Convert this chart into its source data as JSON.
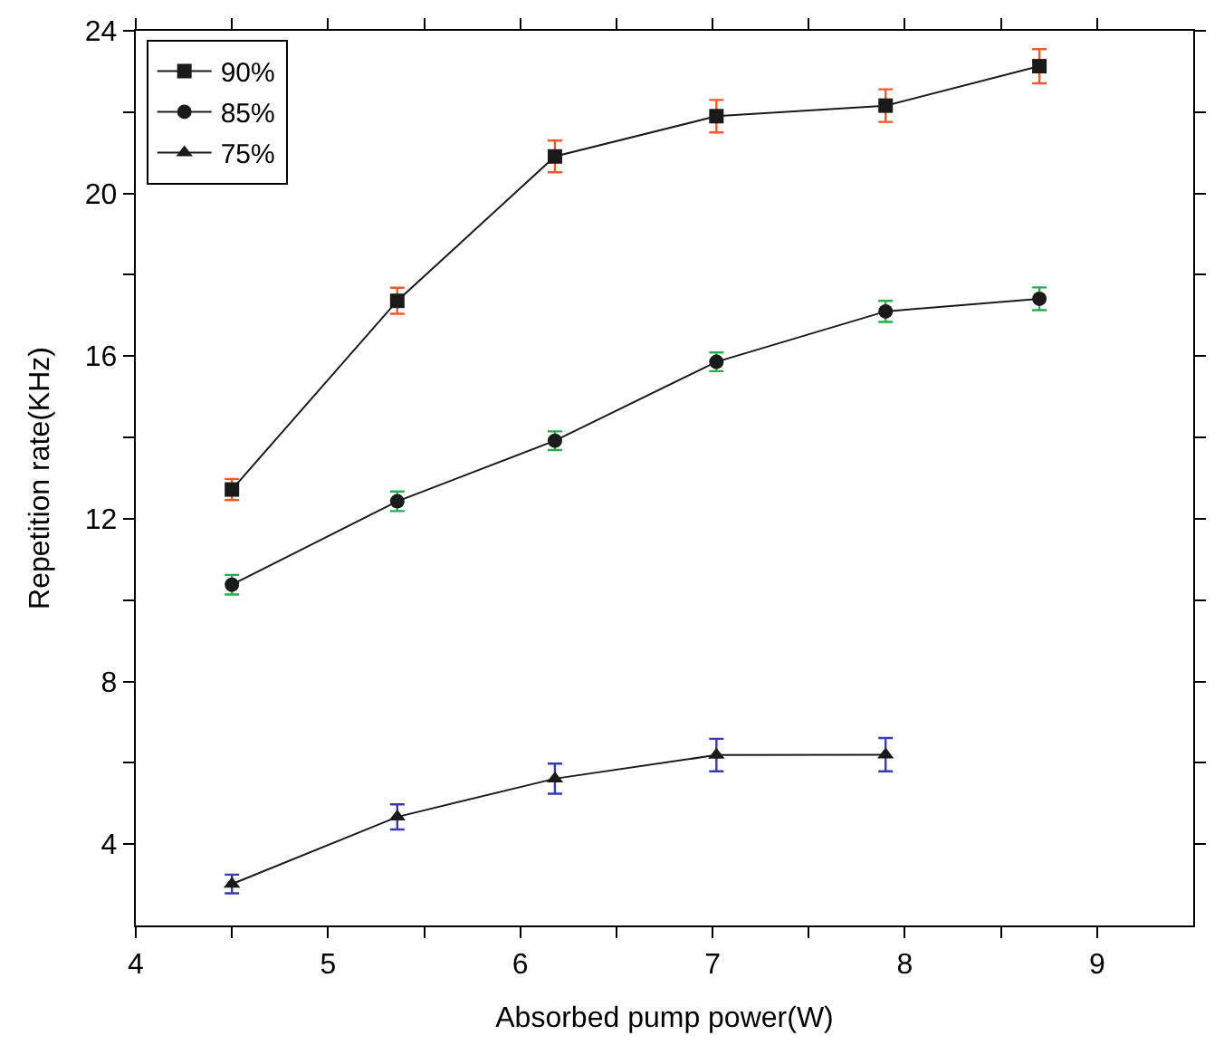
{
  "chart_data": {
    "type": "line",
    "xlabel": "Absorbed pump power(W)",
    "ylabel": "Repetition rate(KHz)",
    "xlim": [
      4,
      9.5
    ],
    "ylim": [
      2,
      24
    ],
    "xticks": [
      4,
      {
        "value": 4.5,
        "label": null
      },
      5,
      {
        "value": 5.5,
        "label": null
      },
      6,
      {
        "value": 6.5,
        "label": null
      },
      7,
      {
        "value": 7.5,
        "label": null
      },
      8,
      {
        "value": 8.5,
        "label": null
      },
      9
    ],
    "yticks": [
      4,
      {
        "value": 6,
        "label": null
      },
      8,
      {
        "value": 10,
        "label": null
      },
      12,
      {
        "value": 14,
        "label": null
      },
      16,
      {
        "value": 18,
        "label": null
      },
      20,
      {
        "value": 22,
        "label": null
      },
      24
    ],
    "legend": "top left",
    "line_style": "solid",
    "series": [
      {
        "name": "90%",
        "color": "#1a1a1a",
        "marker": "square",
        "x": [
          4.5,
          5.36,
          6.18,
          7.02,
          7.9,
          8.7
        ],
        "values": [
          12.72,
          17.36,
          20.91,
          21.9,
          22.16,
          23.13
        ],
        "errors": [
          0.26,
          0.32,
          0.39,
          0.4,
          0.4,
          0.42
        ]
      },
      {
        "name": "85%",
        "color": "#1a1a1a",
        "marker": "circle",
        "x": [
          4.5,
          5.36,
          6.18,
          7.02,
          7.9,
          8.7
        ],
        "values": [
          10.38,
          12.43,
          13.92,
          15.86,
          17.1,
          17.41
        ],
        "errors": [
          0.24,
          0.24,
          0.23,
          0.23,
          0.26,
          0.28
        ]
      },
      {
        "name": "75%",
        "color": "#1a1a1a",
        "marker": "triangle",
        "x": [
          4.5,
          5.36,
          6.18,
          7.02,
          7.9
        ],
        "values": [
          3.02,
          4.67,
          5.61,
          6.19,
          6.2
        ],
        "errors": [
          0.23,
          0.31,
          0.37,
          0.4,
          0.41
        ]
      }
    ]
  }
}
